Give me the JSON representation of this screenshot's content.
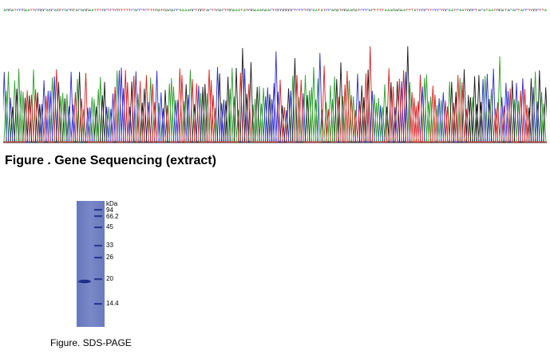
{
  "sequence": {
    "bases": "AGGATCCGAATTCGGCAGCAGTCACGTACAGGAATTTGCTCTGTTTTTCACCTCTTTGATGAGACCAAAAGCTGGTACTTGACTGGAAATATGGAAAGAACTGCGGGGCTCCCTGCAATATCCAGATGGAAGATCCCACTTTTAAAGAGAATTTATCGCTTCCCTGCAATCAATGGCTACATAATGGATACACTACCTGGCTTA",
    "colors": {
      "A": "#2e9e2e",
      "C": "#2c2cd0",
      "G": "#1a1a1a",
      "T": "#d62020"
    }
  },
  "chromatogram": {
    "peak_count": 260
  },
  "figure1": {
    "caption": "Figure . Gene Sequencing (extract)"
  },
  "figure2": {
    "caption": "Figure. SDS-PAGE",
    "unit_label": "kDa",
    "markers": [
      "94",
      "66.2",
      "45",
      "33",
      "26",
      "20",
      "14.4"
    ],
    "lane_color": "#6f7fc2"
  }
}
